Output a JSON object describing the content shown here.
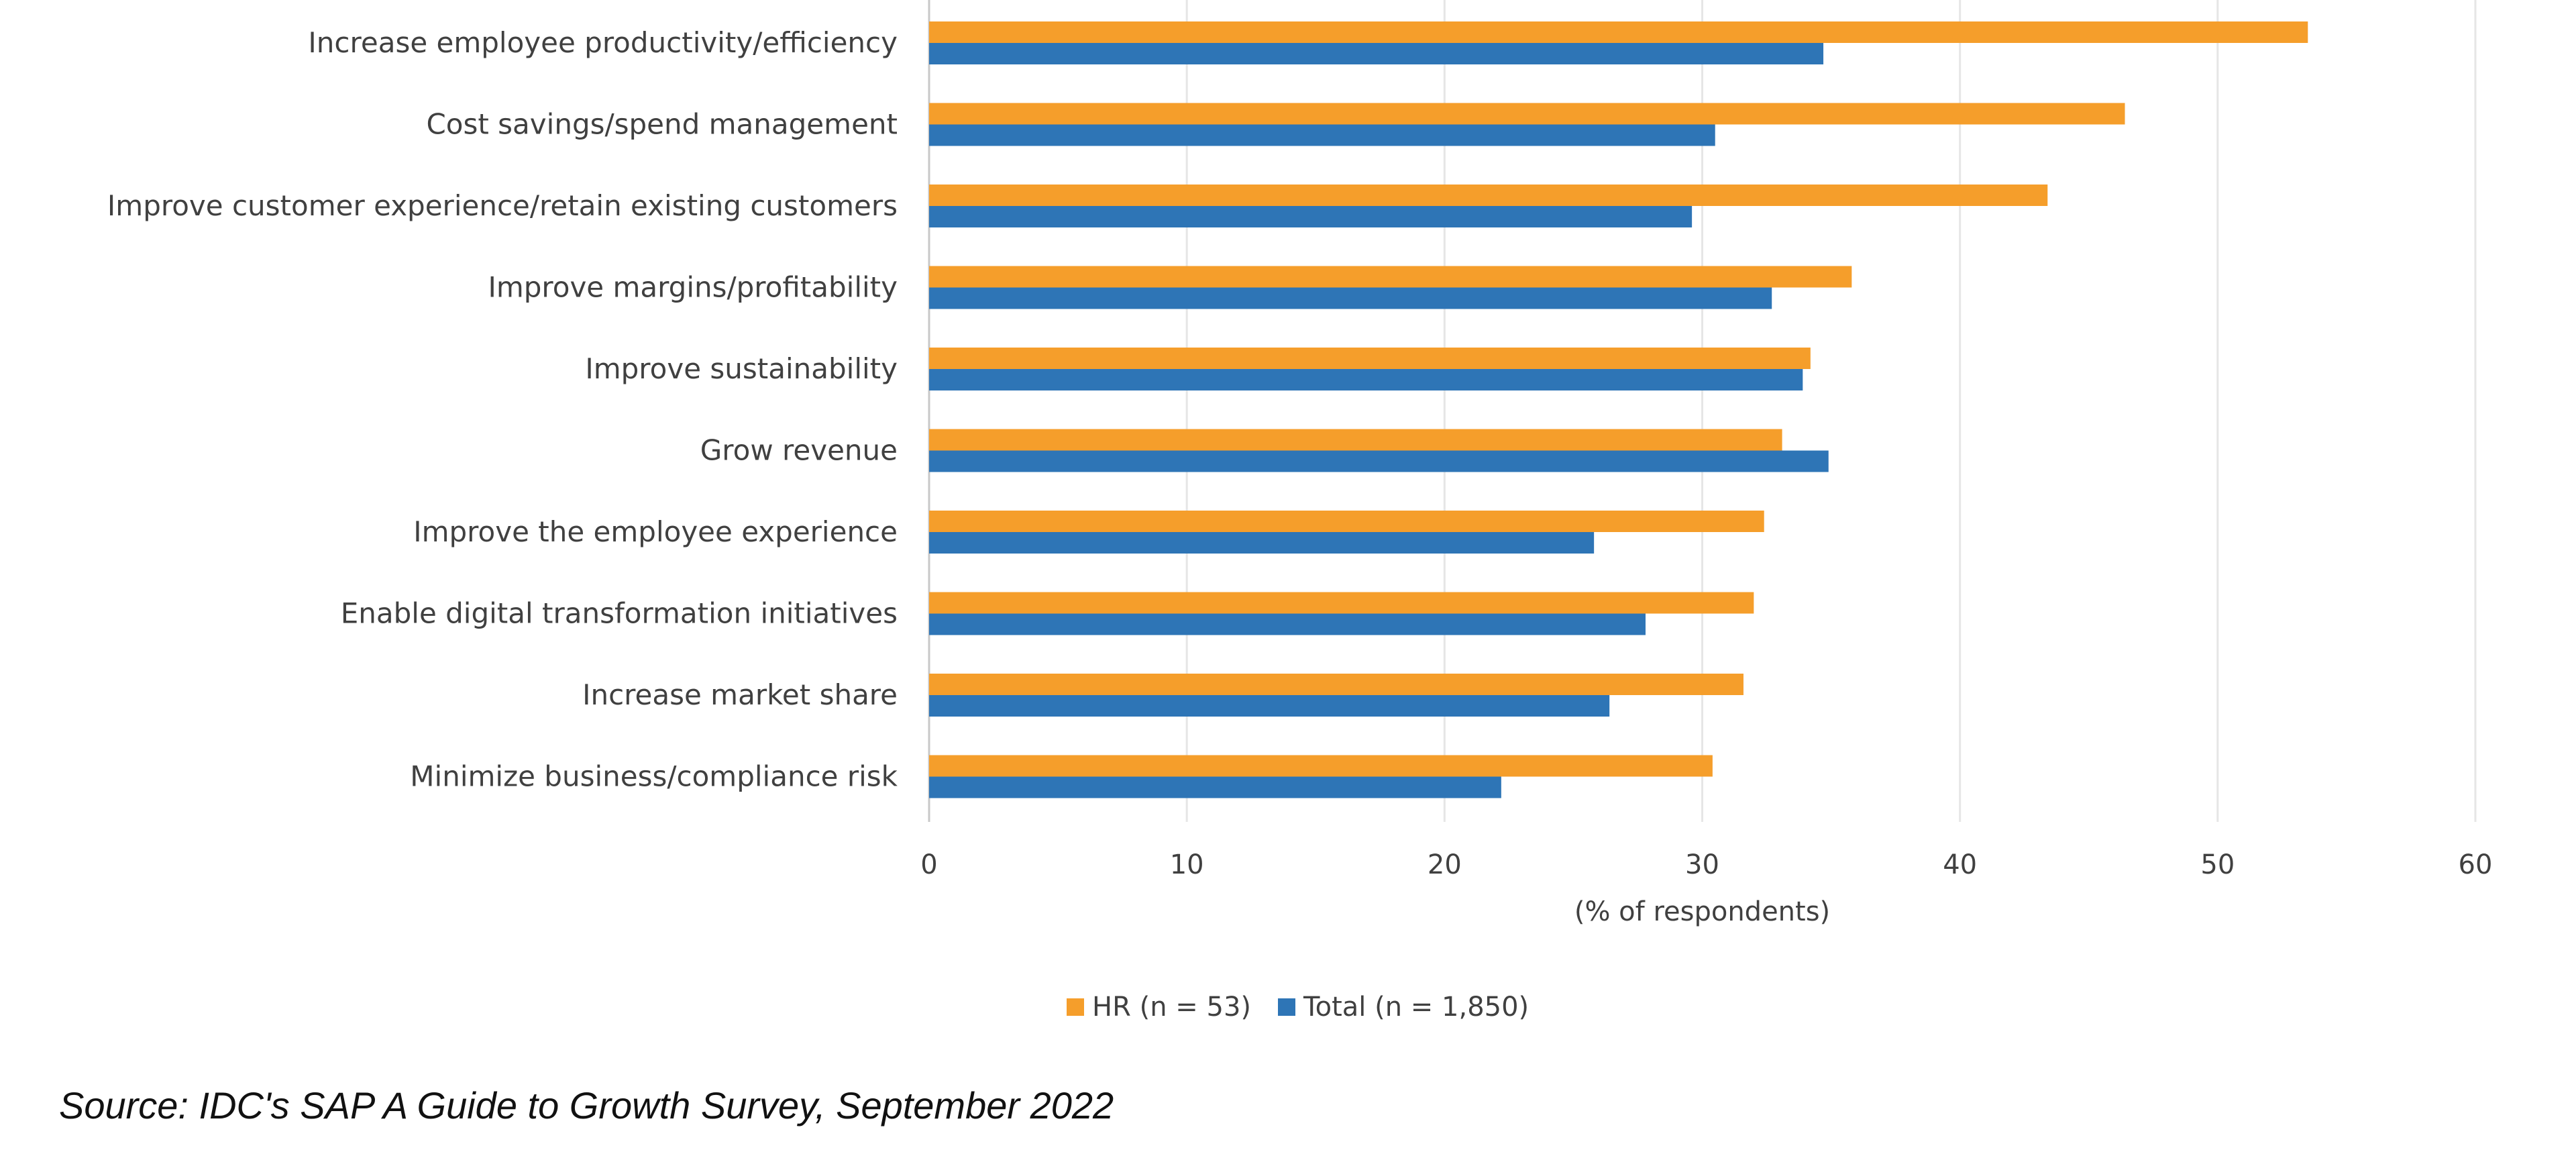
{
  "chart_data": {
    "type": "bar",
    "orientation": "horizontal",
    "categories": [
      "Increase employee productivity/efficiency",
      "Cost savings/spend management",
      "Improve customer experience/retain existing customers",
      "Improve margins/profitability",
      "Improve sustainability",
      "Grow revenue",
      "Improve the employee experience",
      "Enable digital transformation initiatives",
      "Increase market share",
      "Minimize business/compliance risk"
    ],
    "series": [
      {
        "name": "HR (n = 53)",
        "color": "#F59E2B",
        "values": [
          53.5,
          46.4,
          43.4,
          35.8,
          34.2,
          33.1,
          32.4,
          32.0,
          31.6,
          30.4
        ]
      },
      {
        "name": "Total (n = 1,850)",
        "color": "#2E75B6",
        "values": [
          34.7,
          30.5,
          29.6,
          32.7,
          33.9,
          34.9,
          25.8,
          27.8,
          26.4,
          22.2
        ]
      }
    ],
    "xlabel": "(% of respondents)",
    "xlim": [
      0,
      60
    ],
    "xticks": [
      "0",
      "10",
      "20",
      "30",
      "40",
      "50",
      "60"
    ],
    "grid": true,
    "legend_position": "bottom"
  },
  "legend": {
    "hr_label": "HR (n = 53)",
    "total_label": "Total (n = 1,850)"
  },
  "source": "Source: IDC's SAP A Guide to Growth Survey, September 2022"
}
